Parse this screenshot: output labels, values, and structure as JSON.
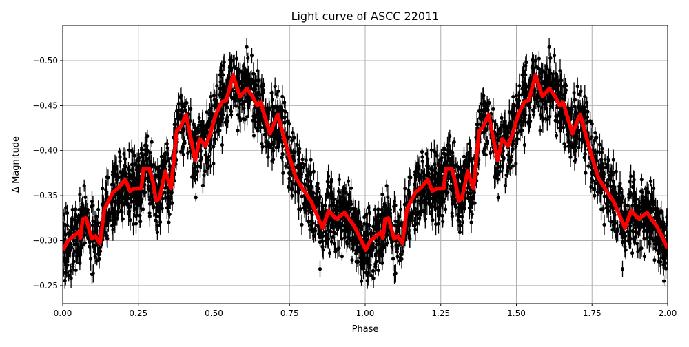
{
  "chart_data": {
    "type": "scatter",
    "title": "Light curve of ASCC 22011",
    "xlabel": "Phase",
    "ylabel": "Δ Magnitude",
    "xlim": [
      0,
      2
    ],
    "ylim": [
      -0.23,
      -0.539
    ],
    "y_inverted": true,
    "grid": true,
    "xticks": [
      "0.00",
      "0.25",
      "0.50",
      "0.75",
      "1.00",
      "1.25",
      "1.50",
      "1.75",
      "2.00"
    ],
    "yticks": [
      "−0.50",
      "−0.45",
      "−0.40",
      "−0.35",
      "−0.30",
      "−0.25"
    ],
    "ytick_values": [
      -0.5,
      -0.45,
      -0.4,
      -0.35,
      -0.3,
      -0.25
    ],
    "colors": {
      "points": "#000000",
      "model": "#ff0000",
      "grid": "#b0b0b0"
    },
    "model_curve": {
      "period_repeat": true,
      "phase": [
        0.0015,
        0.017,
        0.055,
        0.058,
        0.066,
        0.077,
        0.096,
        0.108,
        0.123,
        0.138,
        0.165,
        0.188,
        0.207,
        0.222,
        0.237,
        0.26,
        0.267,
        0.286,
        0.298,
        0.309,
        0.32,
        0.339,
        0.358,
        0.377,
        0.389,
        0.408,
        0.438,
        0.453,
        0.472,
        0.487,
        0.506,
        0.526,
        0.541,
        0.563,
        0.586,
        0.609,
        0.628,
        0.643,
        0.654,
        0.685,
        0.711,
        0.734,
        0.753,
        0.772,
        0.795,
        0.822,
        0.859,
        0.879,
        0.905,
        0.932,
        0.966,
        1.0
      ],
      "mag": [
        -0.2895,
        -0.3,
        -0.31,
        -0.303,
        -0.324,
        -0.325,
        -0.302,
        -0.305,
        -0.297,
        -0.335,
        -0.353,
        -0.36,
        -0.368,
        -0.355,
        -0.358,
        -0.358,
        -0.38,
        -0.38,
        -0.366,
        -0.344,
        -0.347,
        -0.377,
        -0.358,
        -0.422,
        -0.426,
        -0.44,
        -0.389,
        -0.413,
        -0.405,
        -0.418,
        -0.44,
        -0.454,
        -0.456,
        -0.484,
        -0.46,
        -0.469,
        -0.46,
        -0.45,
        -0.454,
        -0.419,
        -0.44,
        -0.412,
        -0.389,
        -0.369,
        -0.357,
        -0.343,
        -0.314,
        -0.333,
        -0.324,
        -0.331,
        -0.315,
        -0.291
      ]
    }
  }
}
